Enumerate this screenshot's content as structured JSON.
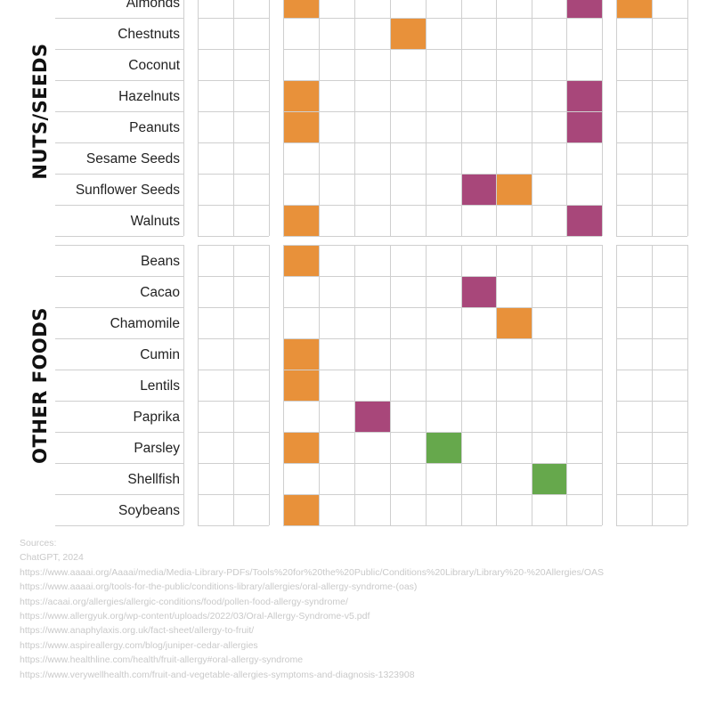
{
  "chart_data": {
    "type": "heatmap",
    "colors": {
      "orange": "#e8913a",
      "purple": "#a8477a",
      "green": "#66a84c"
    },
    "groups": [
      {
        "name": "NUTS/SEEDS",
        "rows": [
          {
            "label": "Almonds",
            "cells": [
              [
                2,
                "orange"
              ],
              [
                10,
                "purple"
              ],
              [
                11,
                "orange"
              ]
            ]
          },
          {
            "label": "Chestnuts",
            "cells": [
              [
                5,
                "orange"
              ]
            ]
          },
          {
            "label": "Coconut",
            "cells": []
          },
          {
            "label": "Hazelnuts",
            "cells": [
              [
                2,
                "orange"
              ],
              [
                10,
                "purple"
              ]
            ]
          },
          {
            "label": "Peanuts",
            "cells": [
              [
                2,
                "orange"
              ],
              [
                10,
                "purple"
              ]
            ]
          },
          {
            "label": "Sesame Seeds",
            "cells": []
          },
          {
            "label": "Sunflower Seeds",
            "cells": [
              [
                7,
                "purple"
              ],
              [
                8,
                "orange"
              ]
            ]
          },
          {
            "label": "Walnuts",
            "cells": [
              [
                2,
                "orange"
              ],
              [
                10,
                "purple"
              ]
            ]
          }
        ]
      },
      {
        "name": "OTHER FOODS",
        "rows": [
          {
            "label": "Beans",
            "cells": [
              [
                2,
                "orange"
              ]
            ]
          },
          {
            "label": "Cacao",
            "cells": [
              [
                7,
                "purple"
              ]
            ]
          },
          {
            "label": "Chamomile",
            "cells": [
              [
                8,
                "orange"
              ]
            ]
          },
          {
            "label": "Cumin",
            "cells": [
              [
                2,
                "orange"
              ]
            ]
          },
          {
            "label": "Lentils",
            "cells": [
              [
                2,
                "orange"
              ]
            ]
          },
          {
            "label": "Paprika",
            "cells": [
              [
                4,
                "purple"
              ]
            ]
          },
          {
            "label": "Parsley",
            "cells": [
              [
                2,
                "orange"
              ],
              [
                6,
                "green"
              ]
            ]
          },
          {
            "label": "Shellfish",
            "cells": [
              [
                9,
                "green"
              ]
            ]
          },
          {
            "label": "Soybeans",
            "cells": [
              [
                2,
                "orange"
              ]
            ]
          }
        ]
      }
    ]
  },
  "sources": [
    "Sources:",
    "ChatGPT, 2024",
    "https://www.aaaai.org/Aaaai/media/Media-Library-PDFs/Tools%20for%20the%20Public/Conditions%20Library/Library%20-%20Allergies/OAS",
    "https://www.aaaai.org/tools-for-the-public/conditions-library/allergies/oral-allergy-syndrome-(oas)",
    "https://acaai.org/allergies/allergic-conditions/food/pollen-food-allergy-syndrome/",
    "https://www.allergyuk.org/wp-content/uploads/2022/03/Oral-Allergy-Syndrome-v5.pdf",
    "https://www.anaphylaxis.org.uk/fact-sheet/allergy-to-fruit/",
    "https://www.aspireallergy.com/blog/juniper-cedar-allergies",
    "https://www.healthline.com/health/fruit-allergy#oral-allergy-syndrome",
    "https://www.verywellhealth.com/fruit-and-vegetable-allergies-symptoms-and-diagnosis-1323908"
  ]
}
